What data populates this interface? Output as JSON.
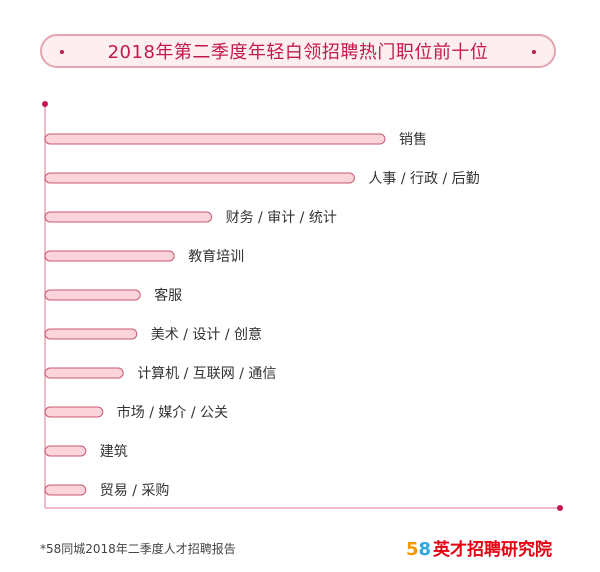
{
  "colors": {
    "bar_fill": "#fbd3da",
    "bar_stroke": "#c75a72",
    "axis": "#e8a6b4",
    "axis_dot": "#c2184f",
    "title": "#c2184f"
  },
  "chart_data": {
    "type": "bar",
    "orientation": "horizontal",
    "title": "2018年第二季度年轻白领招聘热门职位前十位",
    "xlabel": "",
    "ylabel": "",
    "grid": false,
    "value_labels_shown": false,
    "categories": [
      "销售",
      "人事 / 行政 / 后勤",
      "财务 / 审计 / 统计",
      "教育培训",
      "客服",
      "美术 / 设计 / 创意",
      "计算机 / 互联网 / 通信",
      "市场 / 媒介 / 公关",
      "建筑",
      "贸易 / 采购"
    ],
    "values": [
      100,
      91,
      49,
      38,
      28,
      27,
      23,
      17,
      12,
      12
    ],
    "xlim": [
      0,
      100
    ]
  },
  "footer": {
    "note": "*58同城2018年二季度人才招聘报告",
    "brand_digit_1": "5",
    "brand_digit_2": "8",
    "brand_name": "英才招聘研究院"
  }
}
